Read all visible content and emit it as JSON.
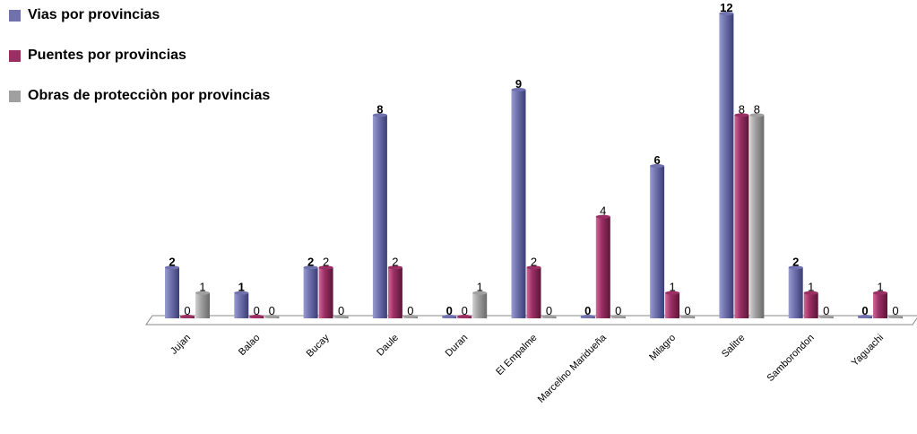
{
  "chart_data": {
    "type": "bar",
    "categories": [
      "Jujan",
      "Balao",
      "Bucay",
      "Daule",
      "Duran",
      "El Empalme",
      "Marcelino Maridueña",
      "Milagro",
      "Salitre",
      "Samborondon",
      "Yaguachi"
    ],
    "series": [
      {
        "name": "Vias por provincias",
        "values": [
          2,
          1,
          2,
          8,
          0,
          9,
          0,
          6,
          12,
          2,
          0
        ],
        "color": "#6f72ad"
      },
      {
        "name": "Puentes por provincias",
        "values": [
          0,
          0,
          2,
          2,
          0,
          2,
          4,
          1,
          8,
          1,
          1
        ],
        "color": "#9b2f64"
      },
      {
        "name": "Obras de protecciòn por provincias",
        "values": [
          1,
          0,
          0,
          0,
          1,
          0,
          0,
          0,
          8,
          0,
          0
        ],
        "color": "#a0a0a0"
      }
    ],
    "ylim": [
      0,
      12
    ],
    "grid": false,
    "legend_position": "top-left"
  }
}
